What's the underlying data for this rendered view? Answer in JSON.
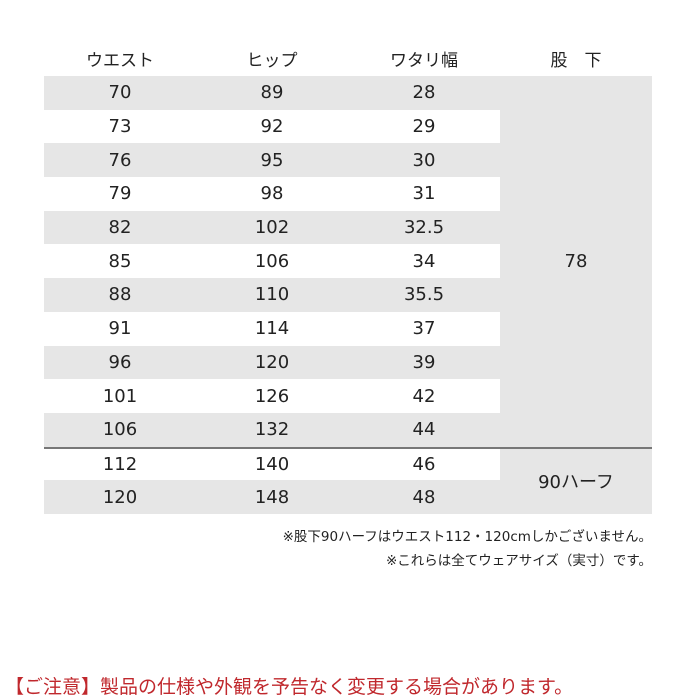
{
  "table": {
    "headers": [
      "ウエスト",
      "ヒップ",
      "ワタリ幅",
      "股　下"
    ],
    "rows": [
      [
        "70",
        "89",
        "28"
      ],
      [
        "73",
        "92",
        "29"
      ],
      [
        "76",
        "95",
        "30"
      ],
      [
        "79",
        "98",
        "31"
      ],
      [
        "82",
        "102",
        "32.5"
      ],
      [
        "85",
        "106",
        "34"
      ],
      [
        "88",
        "110",
        "35.5"
      ],
      [
        "91",
        "114",
        "37"
      ],
      [
        "96",
        "120",
        "39"
      ],
      [
        "101",
        "126",
        "42"
      ],
      [
        "106",
        "132",
        "44"
      ],
      [
        "112",
        "140",
        "46"
      ],
      [
        "120",
        "148",
        "48"
      ]
    ],
    "inseam_groups": [
      {
        "label": "78"
      },
      {
        "label": "90ハーフ"
      }
    ]
  },
  "notes": [
    "※股下90ハーフはウエスト112・120cmしかございません。",
    "※これらは全てウェアサイズ（実寸）です。"
  ],
  "warning": "【ご注意】製品の仕様や外観を予告なく変更する場合があります。",
  "colors": {
    "row_shade": "#e6e6e6",
    "warning": "#c0282d"
  }
}
